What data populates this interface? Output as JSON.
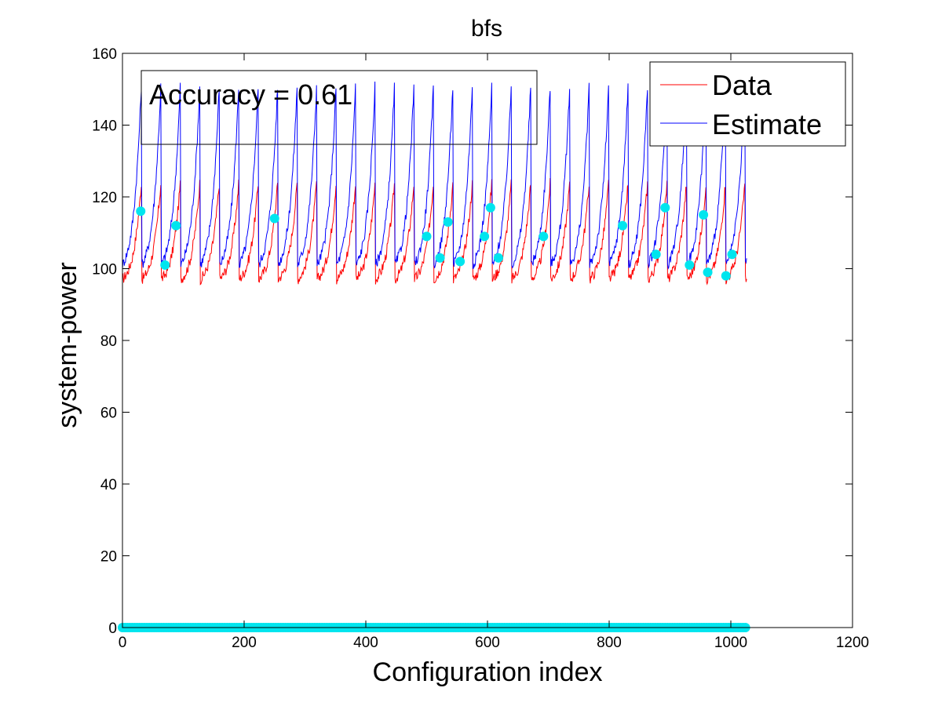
{
  "chart_data": {
    "type": "line",
    "title": "bfs",
    "xlabel": "Configuration index",
    "ylabel": "system-power",
    "xlim": [
      0,
      1200
    ],
    "ylim": [
      0,
      160
    ],
    "xticks": [
      "0",
      "200",
      "400",
      "600",
      "800",
      "1000",
      "1200"
    ],
    "yticks": [
      "0",
      "20",
      "40",
      "60",
      "80",
      "100",
      "120",
      "140",
      "160"
    ],
    "grid": false,
    "legend_position": "top-right",
    "annotation": "Accuracy = 0.61",
    "colors": {
      "data": "#ff0000",
      "estimate": "#0000ff",
      "samples": "#00e5ee"
    },
    "series": [
      {
        "name": "Data",
        "pattern": "sawtooth",
        "x_range": [
          0,
          1026
        ],
        "period": 32,
        "cycle_low": 97,
        "cycle_high": 126
      },
      {
        "name": "Estimate",
        "pattern": "sawtooth",
        "x_range": [
          0,
          1026
        ],
        "period": 32,
        "cycle_low": 101,
        "cycle_high": 155
      }
    ],
    "sample_points": {
      "x": [
        30,
        70,
        88,
        250,
        500,
        522,
        535,
        555,
        595,
        605,
        618,
        692,
        822,
        877,
        892,
        932,
        955,
        962,
        992,
        1002
      ],
      "y": [
        116,
        101,
        112,
        114,
        109,
        103,
        113,
        102,
        109,
        117,
        103,
        109,
        112,
        104,
        117,
        101,
        115,
        99,
        98,
        104
      ]
    },
    "baseline_points": {
      "x_range": [
        0,
        1026
      ],
      "y": 0
    }
  }
}
